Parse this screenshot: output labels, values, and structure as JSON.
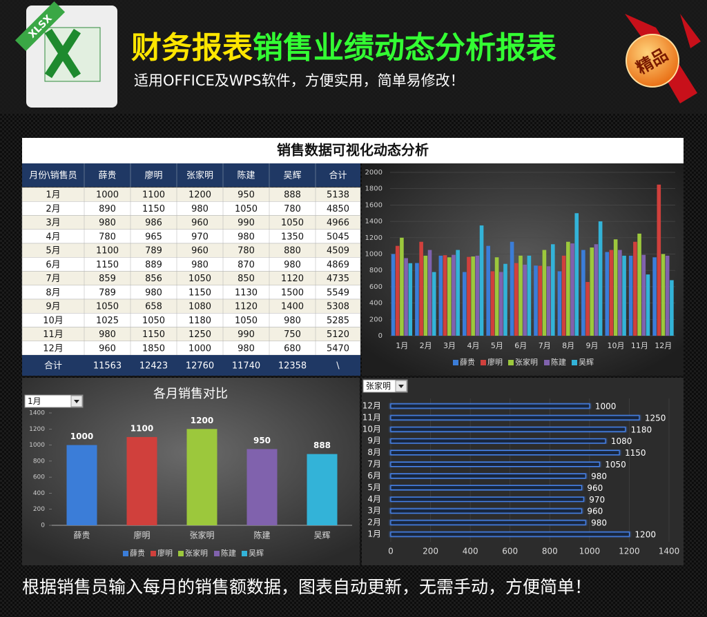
{
  "header": {
    "icon_label": "XLSX",
    "title_part1": "财务报表",
    "title_part2": "销售业绩动态分析报表",
    "subtitle": "适用OFFICE及WPS软件，方便实用，简单易修改！",
    "badge": "精品"
  },
  "table": {
    "title": "销售数据可视化动态分析",
    "columns": [
      "月份\\销售员",
      "薛贵",
      "廖明",
      "张家明",
      "陈建",
      "吴辉",
      "合计"
    ],
    "rows": [
      [
        "1月",
        1000,
        1100,
        1200,
        950,
        888,
        5138
      ],
      [
        "2月",
        890,
        1150,
        980,
        1050,
        780,
        4850
      ],
      [
        "3月",
        980,
        986,
        960,
        990,
        1050,
        4966
      ],
      [
        "4月",
        780,
        965,
        970,
        980,
        1350,
        5045
      ],
      [
        "5月",
        1100,
        789,
        960,
        780,
        880,
        4509
      ],
      [
        "6月",
        1150,
        889,
        980,
        870,
        980,
        4869
      ],
      [
        "7月",
        859,
        856,
        1050,
        850,
        1120,
        4735
      ],
      [
        "8月",
        789,
        980,
        1150,
        1130,
        1500,
        5549
      ],
      [
        "9月",
        1050,
        658,
        1080,
        1120,
        1400,
        5308
      ],
      [
        "10月",
        1025,
        1050,
        1180,
        1050,
        980,
        5285
      ],
      [
        "11月",
        980,
        1150,
        1250,
        990,
        750,
        5120
      ],
      [
        "12月",
        960,
        1850,
        1000,
        980,
        680,
        5470
      ]
    ],
    "total_row": [
      "合计",
      11563,
      12423,
      12760,
      11740,
      12358,
      "\\"
    ]
  },
  "chart_data": [
    {
      "type": "bar",
      "categories": [
        "1月",
        "2月",
        "3月",
        "4月",
        "5月",
        "6月",
        "7月",
        "8月",
        "9月",
        "10月",
        "11月",
        "12月"
      ],
      "series": [
        {
          "name": "薛贵",
          "color": "#3b7dd8",
          "values": [
            1000,
            890,
            980,
            780,
            1100,
            1150,
            859,
            789,
            1050,
            1025,
            980,
            960
          ]
        },
        {
          "name": "廖明",
          "color": "#d0403c",
          "values": [
            1100,
            1150,
            986,
            965,
            789,
            889,
            856,
            980,
            658,
            1050,
            1150,
            1850
          ]
        },
        {
          "name": "张家明",
          "color": "#9cc83c",
          "values": [
            1200,
            980,
            960,
            970,
            960,
            980,
            1050,
            1150,
            1080,
            1180,
            1250,
            1000
          ]
        },
        {
          "name": "陈建",
          "color": "#8062ad",
          "values": [
            950,
            1050,
            990,
            980,
            780,
            870,
            850,
            1130,
            1120,
            1050,
            990,
            980
          ]
        },
        {
          "name": "吴辉",
          "color": "#33b3d8",
          "values": [
            888,
            780,
            1050,
            1350,
            880,
            980,
            1120,
            1500,
            1400,
            980,
            750,
            680
          ]
        }
      ],
      "ylim": [
        0,
        2000
      ],
      "yticks": [
        0,
        200,
        400,
        600,
        800,
        1000,
        1200,
        1400,
        1600,
        1800,
        2000
      ],
      "grid": true
    },
    {
      "type": "bar",
      "title": "各月销售对比",
      "selector": "1月",
      "categories": [
        "薛贵",
        "廖明",
        "张家明",
        "陈建",
        "吴辉"
      ],
      "values": [
        1000,
        1100,
        1200,
        950,
        888
      ],
      "colors": [
        "#3b7dd8",
        "#d0403c",
        "#9cc83c",
        "#8062ad",
        "#33b3d8"
      ],
      "ylim": [
        0,
        1400
      ],
      "yticks": [
        0,
        200,
        400,
        600,
        800,
        1000,
        1200,
        1400
      ],
      "grid": false
    },
    {
      "type": "barh",
      "selector": "张家明",
      "categories": [
        "1月",
        "2月",
        "3月",
        "4月",
        "5月",
        "6月",
        "7月",
        "8月",
        "9月",
        "10月",
        "11月",
        "12月"
      ],
      "values": [
        1200,
        980,
        960,
        970,
        960,
        980,
        1050,
        1150,
        1080,
        1180,
        1250,
        1000
      ],
      "color": "#4a8cff",
      "xlim": [
        0,
        1400
      ],
      "xticks": [
        0,
        200,
        400,
        600,
        800,
        1000,
        1200,
        1400
      ],
      "grid": true
    }
  ],
  "footer": "根据销售员输入每月的销售额数据，图表自动更新，无需手动，方便简单！"
}
